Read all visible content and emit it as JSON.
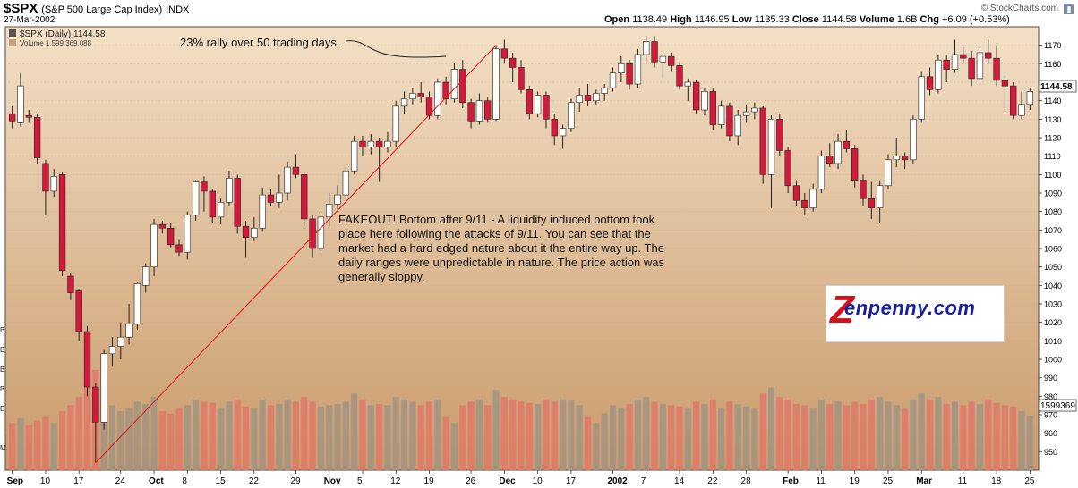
{
  "header": {
    "symbol": "$SPX",
    "description": "(S&P 500 Large Cap Index)",
    "exchange": "INDX",
    "date": "27-Mar-2002",
    "open_label": "Open",
    "open": "1138.49",
    "high_label": "High",
    "high": "1146.95",
    "low_label": "Low",
    "low": "1135.33",
    "close_label": "Close",
    "close": "1144.58",
    "volume_label": "Volume",
    "volume": "1.6B",
    "chg_label": "Chg",
    "chg": "+6.09 (+0.53%)",
    "brand": "© StockCharts.com",
    "brand_icon": "bar-chart-icon"
  },
  "legend": {
    "price": "$SPX (Daily) 1144.58",
    "volume": "Volume 1,599,369,088"
  },
  "annotations": {
    "rally": "23% rally over 50 trading days.",
    "fakeout": [
      "FAKEOUT! Bottom after 9/11 - A liquidity induced bottom took",
      "place here following the attacks of 9/11. You can see that the",
      "market had a hard edged nature about it the entire way up. The",
      "daily ranges were unpredictable in nature. The price action was",
      "generally sloppy."
    ]
  },
  "logo": {
    "z": "Z",
    "text": "enpenny.com"
  },
  "tags": {
    "last_price": "1144.58",
    "last_volume": "1599369"
  },
  "colors": {
    "bg_top": "#f3e0c6",
    "bg_bottom": "#c99a6b",
    "up_candle": "#ffffff",
    "down_candle": "#d41a3c",
    "up_volume": "#a29484",
    "down_volume": "#e0786a",
    "trendline": "#e01515"
  },
  "chart_data": {
    "type": "candlestick",
    "price_axis": {
      "min": 940,
      "max": 1180,
      "ticks": [
        950,
        960,
        970,
        980,
        990,
        1000,
        1010,
        1020,
        1030,
        1040,
        1050,
        1060,
        1070,
        1080,
        1090,
        1100,
        1110,
        1120,
        1130,
        1140,
        1150,
        1160,
        1170
      ]
    },
    "x_labels": [
      "Sep",
      "10",
      "17",
      "24",
      "Oct",
      "8",
      "15",
      "22",
      "29",
      "Nov",
      "5",
      "12",
      "19",
      "26",
      "Dec",
      "10",
      "17",
      "2002",
      "7",
      "14",
      "22",
      "28",
      "Feb",
      "11",
      "19",
      "25",
      "Mar",
      "11",
      "18",
      "25"
    ],
    "left_volume_ticks": [
      "B",
      "B",
      "B",
      "B",
      "B",
      "M"
    ],
    "sessions": [
      {
        "o": 1133,
        "h": 1137,
        "l": 1125,
        "c": 1129,
        "v": 0.4
      },
      {
        "o": 1128,
        "h": 1155,
        "l": 1126,
        "c": 1148,
        "v": 0.44
      },
      {
        "o": 1132,
        "h": 1135,
        "l": 1128,
        "c": 1131,
        "v": 0.38
      },
      {
        "o": 1131,
        "h": 1133,
        "l": 1106,
        "c": 1109,
        "v": 0.42
      },
      {
        "o": 1106,
        "h": 1108,
        "l": 1078,
        "c": 1091,
        "v": 0.45
      },
      {
        "o": 1091,
        "h": 1103,
        "l": 1088,
        "c": 1099,
        "v": 0.4
      },
      {
        "o": 1100,
        "h": 1101,
        "l": 1045,
        "c": 1048,
        "v": 0.5
      },
      {
        "o": 1045,
        "h": 1047,
        "l": 1032,
        "c": 1036,
        "v": 0.55
      },
      {
        "o": 1037,
        "h": 1038,
        "l": 1010,
        "c": 1015,
        "v": 0.62
      },
      {
        "o": 1015,
        "h": 1018,
        "l": 980,
        "c": 985,
        "v": 0.75
      },
      {
        "o": 985,
        "h": 987,
        "l": 944,
        "c": 966,
        "v": 0.85
      },
      {
        "o": 966,
        "h": 1005,
        "l": 962,
        "c": 1003,
        "v": 0.7
      },
      {
        "o": 1003,
        "h": 1012,
        "l": 996,
        "c": 1007,
        "v": 0.55
      },
      {
        "o": 1007,
        "h": 1020,
        "l": 1000,
        "c": 1012,
        "v": 0.5
      },
      {
        "o": 1012,
        "h": 1030,
        "l": 1008,
        "c": 1019,
        "v": 0.52
      },
      {
        "o": 1019,
        "h": 1042,
        "l": 1016,
        "c": 1041,
        "v": 0.58
      },
      {
        "o": 1040,
        "h": 1052,
        "l": 1036,
        "c": 1050,
        "v": 0.56
      },
      {
        "o": 1050,
        "h": 1076,
        "l": 1045,
        "c": 1073,
        "v": 0.62
      },
      {
        "o": 1073,
        "h": 1075,
        "l": 1068,
        "c": 1071,
        "v": 0.5
      },
      {
        "o": 1071,
        "h": 1074,
        "l": 1060,
        "c": 1062,
        "v": 0.48
      },
      {
        "o": 1062,
        "h": 1065,
        "l": 1056,
        "c": 1058,
        "v": 0.52
      },
      {
        "o": 1058,
        "h": 1080,
        "l": 1054,
        "c": 1078,
        "v": 0.55
      },
      {
        "o": 1078,
        "h": 1097,
        "l": 1075,
        "c": 1096,
        "v": 0.6
      },
      {
        "o": 1096,
        "h": 1099,
        "l": 1080,
        "c": 1091,
        "v": 0.58
      },
      {
        "o": 1091,
        "h": 1092,
        "l": 1074,
        "c": 1077,
        "v": 0.57
      },
      {
        "o": 1077,
        "h": 1087,
        "l": 1073,
        "c": 1085,
        "v": 0.52
      },
      {
        "o": 1085,
        "h": 1102,
        "l": 1083,
        "c": 1098,
        "v": 0.58
      },
      {
        "o": 1098,
        "h": 1100,
        "l": 1068,
        "c": 1072,
        "v": 0.6
      },
      {
        "o": 1072,
        "h": 1075,
        "l": 1055,
        "c": 1066,
        "v": 0.54
      },
      {
        "o": 1066,
        "h": 1077,
        "l": 1064,
        "c": 1071,
        "v": 0.52
      },
      {
        "o": 1071,
        "h": 1093,
        "l": 1069,
        "c": 1089,
        "v": 0.6
      },
      {
        "o": 1089,
        "h": 1092,
        "l": 1083,
        "c": 1085,
        "v": 0.55
      },
      {
        "o": 1085,
        "h": 1100,
        "l": 1082,
        "c": 1090,
        "v": 0.56
      },
      {
        "o": 1090,
        "h": 1107,
        "l": 1086,
        "c": 1104,
        "v": 0.6
      },
      {
        "o": 1104,
        "h": 1111,
        "l": 1098,
        "c": 1100,
        "v": 0.58
      },
      {
        "o": 1100,
        "h": 1101,
        "l": 1072,
        "c": 1076,
        "v": 0.62
      },
      {
        "o": 1076,
        "h": 1078,
        "l": 1055,
        "c": 1060,
        "v": 0.58
      },
      {
        "o": 1060,
        "h": 1079,
        "l": 1057,
        "c": 1077,
        "v": 0.54
      },
      {
        "o": 1077,
        "h": 1090,
        "l": 1072,
        "c": 1084,
        "v": 0.55
      },
      {
        "o": 1084,
        "h": 1094,
        "l": 1081,
        "c": 1089,
        "v": 0.56
      },
      {
        "o": 1089,
        "h": 1105,
        "l": 1087,
        "c": 1102,
        "v": 0.58
      },
      {
        "o": 1102,
        "h": 1121,
        "l": 1100,
        "c": 1118,
        "v": 0.65
      },
      {
        "o": 1118,
        "h": 1121,
        "l": 1110,
        "c": 1115,
        "v": 0.6
      },
      {
        "o": 1115,
        "h": 1122,
        "l": 1111,
        "c": 1118,
        "v": 0.55
      },
      {
        "o": 1118,
        "h": 1120,
        "l": 1096,
        "c": 1115,
        "v": 0.56
      },
      {
        "o": 1115,
        "h": 1123,
        "l": 1112,
        "c": 1118,
        "v": 0.55
      },
      {
        "o": 1118,
        "h": 1140,
        "l": 1115,
        "c": 1137,
        "v": 0.62
      },
      {
        "o": 1137,
        "h": 1145,
        "l": 1133,
        "c": 1141,
        "v": 0.6
      },
      {
        "o": 1141,
        "h": 1147,
        "l": 1138,
        "c": 1144,
        "v": 0.58
      },
      {
        "o": 1144,
        "h": 1150,
        "l": 1139,
        "c": 1142,
        "v": 0.55
      },
      {
        "o": 1142,
        "h": 1145,
        "l": 1130,
        "c": 1132,
        "v": 0.58
      },
      {
        "o": 1132,
        "h": 1152,
        "l": 1130,
        "c": 1150,
        "v": 0.6
      },
      {
        "o": 1150,
        "h": 1153,
        "l": 1138,
        "c": 1141,
        "v": 0.45
      },
      {
        "o": 1141,
        "h": 1160,
        "l": 1139,
        "c": 1157,
        "v": 0.4
      },
      {
        "o": 1157,
        "h": 1162,
        "l": 1136,
        "c": 1139,
        "v": 0.55
      },
      {
        "o": 1139,
        "h": 1141,
        "l": 1125,
        "c": 1129,
        "v": 0.58
      },
      {
        "o": 1129,
        "h": 1144,
        "l": 1127,
        "c": 1140,
        "v": 0.6
      },
      {
        "o": 1140,
        "h": 1142,
        "l": 1128,
        "c": 1130,
        "v": 0.55
      },
      {
        "o": 1130,
        "h": 1170,
        "l": 1129,
        "c": 1168,
        "v": 0.68
      },
      {
        "o": 1168,
        "h": 1173,
        "l": 1160,
        "c": 1163,
        "v": 0.62
      },
      {
        "o": 1163,
        "h": 1166,
        "l": 1150,
        "c": 1158,
        "v": 0.6
      },
      {
        "o": 1158,
        "h": 1162,
        "l": 1144,
        "c": 1146,
        "v": 0.58
      },
      {
        "o": 1146,
        "h": 1148,
        "l": 1130,
        "c": 1133,
        "v": 0.57
      },
      {
        "o": 1133,
        "h": 1145,
        "l": 1131,
        "c": 1143,
        "v": 0.56
      },
      {
        "o": 1143,
        "h": 1145,
        "l": 1125,
        "c": 1130,
        "v": 0.6
      },
      {
        "o": 1130,
        "h": 1133,
        "l": 1116,
        "c": 1121,
        "v": 0.58
      },
      {
        "o": 1121,
        "h": 1127,
        "l": 1114,
        "c": 1125,
        "v": 0.6
      },
      {
        "o": 1125,
        "h": 1141,
        "l": 1123,
        "c": 1139,
        "v": 0.59
      },
      {
        "o": 1139,
        "h": 1147,
        "l": 1134,
        "c": 1143,
        "v": 0.55
      },
      {
        "o": 1143,
        "h": 1149,
        "l": 1137,
        "c": 1140,
        "v": 0.45
      },
      {
        "o": 1140,
        "h": 1146,
        "l": 1138,
        "c": 1144,
        "v": 0.4
      },
      {
        "o": 1144,
        "h": 1149,
        "l": 1140,
        "c": 1147,
        "v": 0.48
      },
      {
        "o": 1147,
        "h": 1158,
        "l": 1145,
        "c": 1155,
        "v": 0.55
      },
      {
        "o": 1155,
        "h": 1164,
        "l": 1150,
        "c": 1160,
        "v": 0.52
      },
      {
        "o": 1160,
        "h": 1162,
        "l": 1146,
        "c": 1149,
        "v": 0.56
      },
      {
        "o": 1149,
        "h": 1168,
        "l": 1147,
        "c": 1165,
        "v": 0.6
      },
      {
        "o": 1165,
        "h": 1175,
        "l": 1160,
        "c": 1172,
        "v": 0.62
      },
      {
        "o": 1172,
        "h": 1175,
        "l": 1158,
        "c": 1161,
        "v": 0.58
      },
      {
        "o": 1161,
        "h": 1166,
        "l": 1152,
        "c": 1164,
        "v": 0.56
      },
      {
        "o": 1164,
        "h": 1166,
        "l": 1156,
        "c": 1159,
        "v": 0.55
      },
      {
        "o": 1159,
        "h": 1160,
        "l": 1146,
        "c": 1148,
        "v": 0.54
      },
      {
        "o": 1148,
        "h": 1152,
        "l": 1140,
        "c": 1150,
        "v": 0.52
      },
      {
        "o": 1150,
        "h": 1151,
        "l": 1133,
        "c": 1135,
        "v": 0.58
      },
      {
        "o": 1135,
        "h": 1147,
        "l": 1132,
        "c": 1145,
        "v": 0.56
      },
      {
        "o": 1145,
        "h": 1147,
        "l": 1124,
        "c": 1127,
        "v": 0.6
      },
      {
        "o": 1127,
        "h": 1140,
        "l": 1125,
        "c": 1137,
        "v": 0.52
      },
      {
        "o": 1137,
        "h": 1139,
        "l": 1118,
        "c": 1121,
        "v": 0.58
      },
      {
        "o": 1121,
        "h": 1135,
        "l": 1116,
        "c": 1132,
        "v": 0.56
      },
      {
        "o": 1132,
        "h": 1138,
        "l": 1128,
        "c": 1134,
        "v": 0.54
      },
      {
        "o": 1134,
        "h": 1139,
        "l": 1130,
        "c": 1136,
        "v": 0.52
      },
      {
        "o": 1136,
        "h": 1137,
        "l": 1095,
        "c": 1100,
        "v": 0.65
      },
      {
        "o": 1100,
        "h": 1132,
        "l": 1082,
        "c": 1130,
        "v": 0.7
      },
      {
        "o": 1130,
        "h": 1133,
        "l": 1110,
        "c": 1113,
        "v": 0.62
      },
      {
        "o": 1113,
        "h": 1115,
        "l": 1090,
        "c": 1094,
        "v": 0.6
      },
      {
        "o": 1094,
        "h": 1097,
        "l": 1083,
        "c": 1086,
        "v": 0.56
      },
      {
        "o": 1086,
        "h": 1090,
        "l": 1078,
        "c": 1082,
        "v": 0.55
      },
      {
        "o": 1082,
        "h": 1095,
        "l": 1080,
        "c": 1092,
        "v": 0.52
      },
      {
        "o": 1092,
        "h": 1113,
        "l": 1090,
        "c": 1110,
        "v": 0.6
      },
      {
        "o": 1110,
        "h": 1117,
        "l": 1104,
        "c": 1106,
        "v": 0.56
      },
      {
        "o": 1106,
        "h": 1122,
        "l": 1103,
        "c": 1118,
        "v": 0.58
      },
      {
        "o": 1118,
        "h": 1124,
        "l": 1112,
        "c": 1114,
        "v": 0.55
      },
      {
        "o": 1114,
        "h": 1116,
        "l": 1093,
        "c": 1097,
        "v": 0.58
      },
      {
        "o": 1097,
        "h": 1100,
        "l": 1083,
        "c": 1087,
        "v": 0.56
      },
      {
        "o": 1087,
        "h": 1096,
        "l": 1076,
        "c": 1082,
        "v": 0.6
      },
      {
        "o": 1082,
        "h": 1097,
        "l": 1074,
        "c": 1094,
        "v": 0.62
      },
      {
        "o": 1094,
        "h": 1111,
        "l": 1092,
        "c": 1108,
        "v": 0.58
      },
      {
        "o": 1108,
        "h": 1120,
        "l": 1104,
        "c": 1110,
        "v": 0.55
      },
      {
        "o": 1110,
        "h": 1112,
        "l": 1103,
        "c": 1108,
        "v": 0.52
      },
      {
        "o": 1108,
        "h": 1132,
        "l": 1106,
        "c": 1130,
        "v": 0.6
      },
      {
        "o": 1130,
        "h": 1156,
        "l": 1128,
        "c": 1153,
        "v": 0.65
      },
      {
        "o": 1153,
        "h": 1158,
        "l": 1143,
        "c": 1146,
        "v": 0.6
      },
      {
        "o": 1146,
        "h": 1165,
        "l": 1144,
        "c": 1162,
        "v": 0.62
      },
      {
        "o": 1162,
        "h": 1165,
        "l": 1150,
        "c": 1157,
        "v": 0.56
      },
      {
        "o": 1157,
        "h": 1173,
        "l": 1155,
        "c": 1165,
        "v": 0.58
      },
      {
        "o": 1165,
        "h": 1169,
        "l": 1160,
        "c": 1163,
        "v": 0.55
      },
      {
        "o": 1163,
        "h": 1167,
        "l": 1148,
        "c": 1152,
        "v": 0.58
      },
      {
        "o": 1152,
        "h": 1168,
        "l": 1150,
        "c": 1166,
        "v": 0.56
      },
      {
        "o": 1166,
        "h": 1173,
        "l": 1160,
        "c": 1163,
        "v": 0.6
      },
      {
        "o": 1163,
        "h": 1170,
        "l": 1148,
        "c": 1151,
        "v": 0.57
      },
      {
        "o": 1151,
        "h": 1155,
        "l": 1135,
        "c": 1148,
        "v": 0.55
      },
      {
        "o": 1148,
        "h": 1150,
        "l": 1130,
        "c": 1132,
        "v": 0.54
      },
      {
        "o": 1132,
        "h": 1145,
        "l": 1130,
        "c": 1138,
        "v": 0.5
      },
      {
        "o": 1138,
        "h": 1147,
        "l": 1135,
        "c": 1145,
        "v": 0.46
      }
    ],
    "trendlines": [
      {
        "from": {
          "session": 10,
          "price": 944
        },
        "to": {
          "session": 58,
          "price": 1170
        }
      }
    ]
  }
}
